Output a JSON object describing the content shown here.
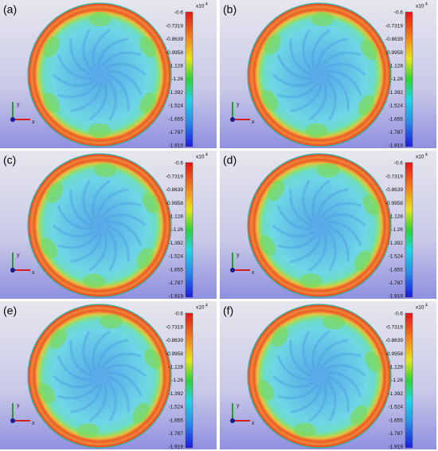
{
  "panels": [
    {
      "label": "(a)"
    },
    {
      "label": "(b)"
    },
    {
      "label": "(c)"
    },
    {
      "label": "(d)"
    },
    {
      "label": "(e)"
    },
    {
      "label": "(f)"
    }
  ],
  "colorbar": {
    "exponent_base": "x10",
    "exponent_power": 4,
    "ticks": [
      -0.6,
      -0.7319,
      -0.8639,
      -0.9958,
      -1.128,
      -1.26,
      -1.392,
      -1.524,
      -1.655,
      -1.787,
      -1.919
    ]
  },
  "axes_labels": {
    "x": "x",
    "y": "y"
  }
}
